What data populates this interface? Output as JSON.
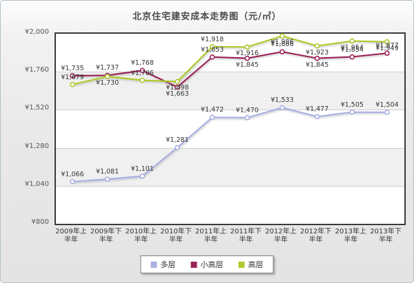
{
  "title": "北京住宅建安成本走势图（元/㎡）",
  "chart_data": {
    "type": "line",
    "title": "北京住宅建安成本走势图（元/㎡）",
    "categories": [
      "2009年上半年",
      "2009年下半年",
      "2010年上半年",
      "2010年下半年",
      "2011年上半年",
      "2011年下半年",
      "2012年上半年",
      "2012年下半年",
      "2013年上半年",
      "2013年下半年"
    ],
    "currency_prefix": "¥",
    "y_ticks": [
      800,
      1040,
      1280,
      1520,
      1760,
      2000
    ],
    "ylim": [
      800,
      2000
    ],
    "grid": true,
    "legend_position": "bottom",
    "series": [
      {
        "name": "多层",
        "color": "#a9b0e2",
        "values": [
          1066,
          1081,
          1101,
          1281,
          1472,
          1470,
          1533,
          1477,
          1505,
          1504
        ],
        "label_above": [
          true,
          true,
          true,
          true,
          true,
          true,
          true,
          true,
          true,
          true
        ]
      },
      {
        "name": "小高层",
        "color": "#9b2257",
        "values": [
          1735,
          1737,
          1768,
          1663,
          1853,
          1845,
          1886,
          1845,
          1854,
          1877
        ],
        "label_above": [
          true,
          true,
          true,
          false,
          true,
          false,
          true,
          false,
          true,
          true
        ]
      },
      {
        "name": "高层",
        "color": "#aec92c",
        "values": [
          1679,
          1730,
          1706,
          1698,
          1918,
          1916,
          1986,
          1923,
          1954,
          1949
        ],
        "label_above": [
          true,
          false,
          true,
          false,
          true,
          false,
          false,
          false,
          false,
          false
        ]
      }
    ]
  }
}
